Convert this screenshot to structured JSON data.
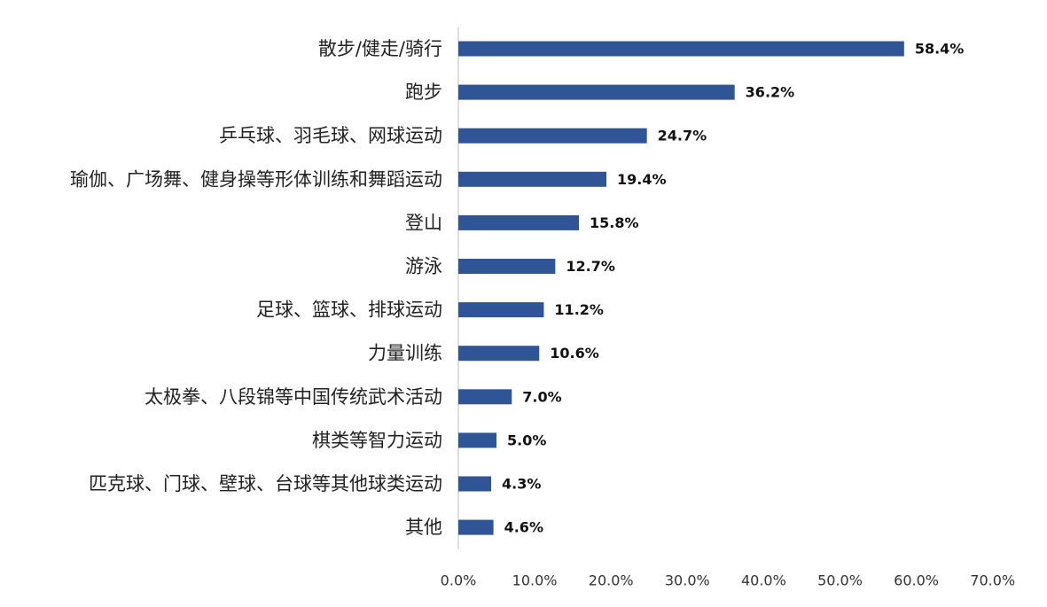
{
  "chart_data": {
    "type": "bar",
    "orientation": "horizontal",
    "categories": [
      "散步/健走/骑行",
      "跑步",
      "乒乓球、羽毛球、网球运动",
      "瑜伽、广场舞、健身操等形体训练和舞蹈运动",
      "登山",
      "游泳",
      "足球、篮球、排球运动",
      "力量训练",
      "太极拳、八段锦等中国传统武术活动",
      "棋类等智力运动",
      "匹克球、门球、壁球、台球等其他球类运动",
      "其他"
    ],
    "values": [
      58.4,
      36.2,
      24.7,
      19.4,
      15.8,
      12.7,
      11.2,
      10.6,
      7.0,
      5.0,
      4.3,
      4.6
    ],
    "value_labels": [
      "58.4%",
      "36.2%",
      "24.7%",
      "19.4%",
      "15.8%",
      "12.7%",
      "11.2%",
      "10.6%",
      "7.0%",
      "5.0%",
      "4.3%",
      "4.6%"
    ],
    "x_ticks": [
      0,
      10,
      20,
      30,
      40,
      50,
      60,
      70
    ],
    "x_tick_labels": [
      "0.0%",
      "10.0%",
      "20.0%",
      "30.0%",
      "40.0%",
      "50.0%",
      "60.0%",
      "70.0%"
    ],
    "xlim": [
      0,
      70
    ],
    "title": "",
    "xlabel": "",
    "ylabel": "",
    "grid": false,
    "legend": "none",
    "bar_color": "#2f5597"
  }
}
